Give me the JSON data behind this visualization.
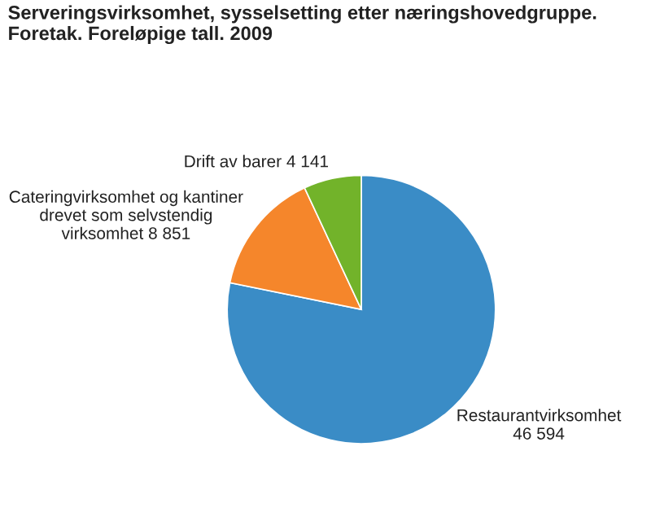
{
  "chart_data": {
    "type": "pie",
    "title": "Serveringsvirksomhet, sysselsetting etter næringshovedgruppe.\nForetak. Foreløpige tall. 2009",
    "categories": [
      "Restaurantvirksomhet",
      "Cateringvirksomhet og kantiner\ndrevet som selvstendig\nvirksomhet",
      "Drift av barer"
    ],
    "values": [
      46594,
      8851,
      4141
    ],
    "value_labels": [
      "46 594",
      "8 851",
      "4 141"
    ],
    "colors": [
      "#3a8cc6",
      "#f5862b",
      "#72b32a"
    ]
  }
}
